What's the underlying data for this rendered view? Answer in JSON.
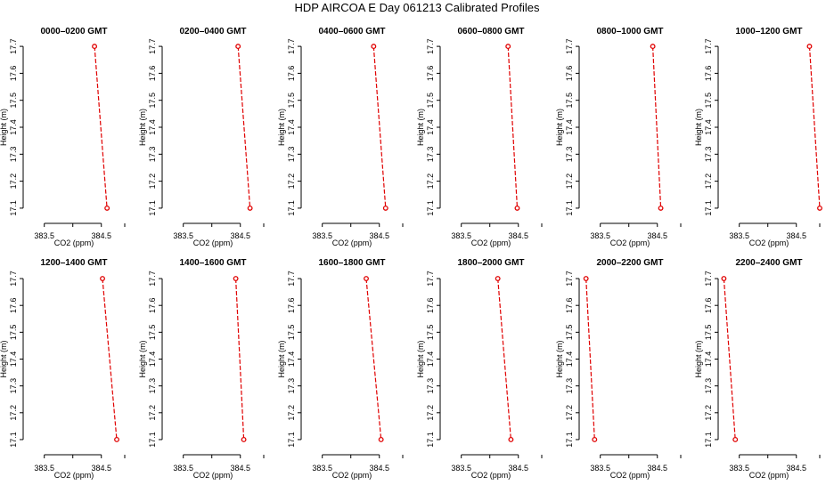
{
  "title": "HDP AIRCOA E  Day 061213  Calibrated Profiles",
  "colors": {
    "series": "#e00000",
    "axis": "#000000"
  },
  "chart_data": [
    {
      "type": "line",
      "title": "0000–0200 GMT",
      "xlabel": "CO2 (ppm)",
      "ylabel": "Height (m)",
      "xlim": [
        383.13,
        384.91
      ],
      "ylim": [
        17.07,
        17.73
      ],
      "xticks": [
        383.5,
        384.5
      ],
      "yticks": [
        17.1,
        17.2,
        17.3,
        17.4,
        17.5,
        17.6,
        17.7
      ],
      "series": [
        {
          "x": [
            384.38,
            384.6
          ],
          "y": [
            17.7,
            17.1
          ]
        }
      ]
    },
    {
      "type": "line",
      "title": "0200–0400 GMT",
      "xlabel": "CO2 (ppm)",
      "ylabel": "Height (m)",
      "xlim": [
        383.13,
        384.91
      ],
      "ylim": [
        17.07,
        17.73
      ],
      "xticks": [
        383.5,
        384.5
      ],
      "yticks": [
        17.1,
        17.2,
        17.3,
        17.4,
        17.5,
        17.6,
        17.7
      ],
      "series": [
        {
          "x": [
            384.46,
            384.67
          ],
          "y": [
            17.7,
            17.1
          ]
        }
      ]
    },
    {
      "type": "line",
      "title": "0400–0600 GMT",
      "xlabel": "CO2 (ppm)",
      "ylabel": "Height (m)",
      "xlim": [
        383.13,
        384.91
      ],
      "ylim": [
        17.07,
        17.73
      ],
      "xticks": [
        383.5,
        384.5
      ],
      "yticks": [
        17.1,
        17.2,
        17.3,
        17.4,
        17.5,
        17.6,
        17.7
      ],
      "series": [
        {
          "x": [
            384.4,
            384.61
          ],
          "y": [
            17.7,
            17.1
          ]
        }
      ]
    },
    {
      "type": "line",
      "title": "0600–0800 GMT",
      "xlabel": "CO2 (ppm)",
      "ylabel": "Height (m)",
      "xlim": [
        383.13,
        384.91
      ],
      "ylim": [
        17.07,
        17.73
      ],
      "xticks": [
        383.5,
        384.5
      ],
      "yticks": [
        17.1,
        17.2,
        17.3,
        17.4,
        17.5,
        17.6,
        17.7
      ],
      "series": [
        {
          "x": [
            384.32,
            384.48
          ],
          "y": [
            17.7,
            17.1
          ]
        }
      ]
    },
    {
      "type": "line",
      "title": "0800–1000 GMT",
      "xlabel": "CO2 (ppm)",
      "ylabel": "Height (m)",
      "xlim": [
        383.13,
        384.91
      ],
      "ylim": [
        17.07,
        17.73
      ],
      "xticks": [
        383.5,
        384.5
      ],
      "yticks": [
        17.1,
        17.2,
        17.3,
        17.4,
        17.5,
        17.6,
        17.7
      ],
      "series": [
        {
          "x": [
            384.42,
            384.56
          ],
          "y": [
            17.7,
            17.1
          ]
        }
      ]
    },
    {
      "type": "line",
      "title": "1000–1200 GMT",
      "xlabel": "CO2 (ppm)",
      "ylabel": "Height (m)",
      "xlim": [
        383.13,
        384.91
      ],
      "ylim": [
        17.07,
        17.73
      ],
      "xticks": [
        383.5,
        384.5
      ],
      "yticks": [
        17.1,
        17.2,
        17.3,
        17.4,
        17.5,
        17.6,
        17.7
      ],
      "series": [
        {
          "x": [
            384.73,
            384.91
          ],
          "y": [
            17.7,
            17.1
          ]
        }
      ]
    },
    {
      "type": "line",
      "title": "1200–1400 GMT",
      "xlabel": "CO2 (ppm)",
      "ylabel": "Height (m)",
      "xlim": [
        383.13,
        384.91
      ],
      "ylim": [
        17.07,
        17.73
      ],
      "xticks": [
        383.5,
        384.5
      ],
      "yticks": [
        17.1,
        17.2,
        17.3,
        17.4,
        17.5,
        17.6,
        17.7
      ],
      "series": [
        {
          "x": [
            384.52,
            384.77
          ],
          "y": [
            17.7,
            17.1
          ]
        }
      ]
    },
    {
      "type": "line",
      "title": "1400–1600 GMT",
      "xlabel": "CO2 (ppm)",
      "ylabel": "Height (m)",
      "xlim": [
        383.13,
        384.91
      ],
      "ylim": [
        17.07,
        17.73
      ],
      "xticks": [
        383.5,
        384.5
      ],
      "yticks": [
        17.1,
        17.2,
        17.3,
        17.4,
        17.5,
        17.6,
        17.7
      ],
      "series": [
        {
          "x": [
            384.42,
            384.56
          ],
          "y": [
            17.7,
            17.1
          ]
        }
      ]
    },
    {
      "type": "line",
      "title": "1600–1800 GMT",
      "xlabel": "CO2 (ppm)",
      "ylabel": "Height (m)",
      "xlim": [
        383.13,
        384.91
      ],
      "ylim": [
        17.07,
        17.73
      ],
      "xticks": [
        383.5,
        384.5
      ],
      "yticks": [
        17.1,
        17.2,
        17.3,
        17.4,
        17.5,
        17.6,
        17.7
      ],
      "series": [
        {
          "x": [
            384.27,
            384.53
          ],
          "y": [
            17.7,
            17.1
          ]
        }
      ]
    },
    {
      "type": "line",
      "title": "1800–2000 GMT",
      "xlabel": "CO2 (ppm)",
      "ylabel": "Height (m)",
      "xlim": [
        383.13,
        384.91
      ],
      "ylim": [
        17.07,
        17.73
      ],
      "xticks": [
        383.5,
        384.5
      ],
      "yticks": [
        17.1,
        17.2,
        17.3,
        17.4,
        17.5,
        17.6,
        17.7
      ],
      "series": [
        {
          "x": [
            384.14,
            384.37
          ],
          "y": [
            17.7,
            17.1
          ]
        }
      ]
    },
    {
      "type": "line",
      "title": "2000–2200 GMT",
      "xlabel": "CO2 (ppm)",
      "ylabel": "Height (m)",
      "xlim": [
        383.13,
        384.91
      ],
      "ylim": [
        17.07,
        17.73
      ],
      "xticks": [
        383.5,
        384.5
      ],
      "yticks": [
        17.1,
        17.2,
        17.3,
        17.4,
        17.5,
        17.6,
        17.7
      ],
      "series": [
        {
          "x": [
            383.25,
            383.4
          ],
          "y": [
            17.7,
            17.1
          ]
        }
      ]
    },
    {
      "type": "line",
      "title": "2200–2400 GMT",
      "xlabel": "CO2 (ppm)",
      "ylabel": "Height (m)",
      "xlim": [
        383.13,
        384.91
      ],
      "ylim": [
        17.07,
        17.73
      ],
      "xticks": [
        383.5,
        384.5
      ],
      "yticks": [
        17.1,
        17.2,
        17.3,
        17.4,
        17.5,
        17.6,
        17.7
      ],
      "series": [
        {
          "x": [
            383.23,
            383.43
          ],
          "y": [
            17.7,
            17.1
          ]
        }
      ]
    }
  ]
}
